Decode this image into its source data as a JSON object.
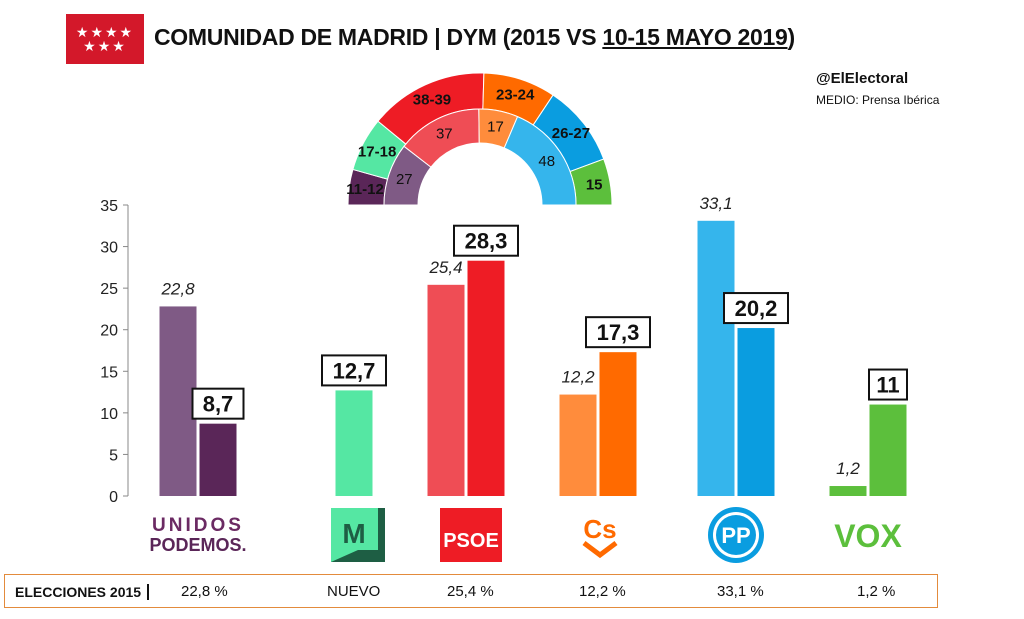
{
  "header": {
    "title": "COMUNIDAD DE MADRID",
    "subtitle_prefix": "| DYM (2015 VS ",
    "subtitle_date": "10-15 MAYO 2019",
    "subtitle_suffix": ")",
    "handle": "@ElElectoral",
    "medio": "MEDIO: Prensa Ibérica"
  },
  "colors": {
    "flag": "#d3182a",
    "footer_border": "#e38b3c"
  },
  "chart_data": {
    "type": "bar",
    "ylim": [
      0,
      35
    ],
    "yticks": [
      "0",
      "5",
      "10",
      "15",
      "20",
      "25",
      "30",
      "35"
    ],
    "grid": false,
    "categories": [
      "UNIDOS PODEMOS",
      "MÁS MADRID",
      "PSOE",
      "Cs",
      "PP",
      "VOX"
    ],
    "series": [
      {
        "values": [
          22.8,
          null,
          25.4,
          12.2,
          33.1,
          1.2
        ],
        "labels": [
          "22,8",
          "",
          "25,4",
          "12,2",
          "33,1",
          "1,2"
        ],
        "colors": [
          "#7f5a85",
          null,
          "#ef4d55",
          "#ff8c3c",
          "#35b5ec",
          "#5cbf3c"
        ]
      },
      {
        "values": [
          8.7,
          12.7,
          28.3,
          17.3,
          20.2,
          11
        ],
        "labels": [
          "8,7",
          "12,7",
          "28,3",
          "17,3",
          "20,2",
          "11"
        ],
        "colors": [
          "#5a2658",
          "#55e7a3",
          "#ee1c25",
          "#ff6a00",
          "#0a9de0",
          "#5cbf3c"
        ]
      }
    ],
    "hemicycle": {
      "outer": [
        {
          "label": "11-12",
          "mid": 11.5,
          "color": "#5a2658"
        },
        {
          "label": "17-18",
          "mid": 17.5,
          "color": "#55e7a3"
        },
        {
          "label": "38-39",
          "mid": 38.5,
          "color": "#ee1c25"
        },
        {
          "label": "23-24",
          "mid": 23.5,
          "color": "#ff6a00"
        },
        {
          "label": "26-27",
          "mid": 26.5,
          "color": "#0a9de0"
        },
        {
          "label": "15",
          "mid": 15,
          "color": "#5cbf3c"
        }
      ],
      "inner": [
        {
          "label": "27",
          "value": 27,
          "color": "#7f5a85"
        },
        {
          "label": "37",
          "value": 37,
          "color": "#ef4d55"
        },
        {
          "label": "17",
          "value": 17,
          "color": "#ff8c3c"
        },
        {
          "label": "48",
          "value": 48,
          "color": "#35b5ec"
        }
      ]
    }
  },
  "logos": {
    "podemos_line1": "UNIDOS",
    "podemos_line2": "PODEMOS.",
    "masmadrid": "M",
    "psoe": "PSOE",
    "cs": "Cs",
    "pp": "PP",
    "vox": "VOX"
  },
  "footer": {
    "label": "ELECCIONES 2015",
    "values": [
      "22,8 %",
      "NUEVO",
      "25,4 %",
      "12,2 %",
      "33,1 %",
      "1,2 %"
    ]
  }
}
